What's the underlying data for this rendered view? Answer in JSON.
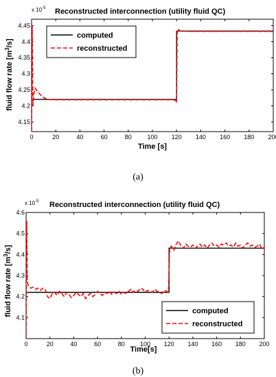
{
  "chart_data": [
    {
      "type": "line",
      "panel_caption": "(a)",
      "title": "Reconstructed interconnection (utility fluid QC)",
      "y_multiplier": "x 10",
      "y_multiplier_exponent": "-5",
      "xlabel": "Time [s]",
      "ylabel_main": "fluid flow rate [m",
      "ylabel_sup": "3",
      "ylabel_tail": "/s]",
      "xlim": [
        0,
        200
      ],
      "ylim": [
        4.12,
        4.47
      ],
      "xticks": [
        0,
        20,
        40,
        60,
        80,
        100,
        120,
        140,
        160,
        180,
        200
      ],
      "yticks": [
        4.15,
        4.2,
        4.25,
        4.3,
        4.35,
        4.4,
        4.45
      ],
      "legend_position": "top-left",
      "series": [
        {
          "name": "computed",
          "color": "#000000",
          "style": "solid",
          "x": [
            0,
            120,
            120,
            200
          ],
          "y": [
            4.22,
            4.22,
            4.433,
            4.433
          ]
        },
        {
          "name": "reconstructed",
          "color": "#ff0000",
          "style": "dashed",
          "x": [
            0,
            0.5,
            1,
            2,
            3,
            4,
            5,
            6,
            8,
            10,
            12,
            14,
            18,
            25,
            40,
            60,
            80,
            100,
            118,
            119.5,
            120,
            120.5,
            121,
            123,
            130,
            150,
            175,
            200
          ],
          "y": [
            4.12,
            4.45,
            4.2,
            4.24,
            4.255,
            4.25,
            4.245,
            4.24,
            4.232,
            4.226,
            4.222,
            4.22,
            4.219,
            4.219,
            4.219,
            4.219,
            4.219,
            4.219,
            4.219,
            4.215,
            4.21,
            4.43,
            4.44,
            4.433,
            4.432,
            4.432,
            4.432,
            4.432
          ]
        }
      ]
    },
    {
      "type": "line",
      "panel_caption": "(b)",
      "title": "Reconstructed interconnection (utility fluid QC)",
      "y_multiplier": "x 10",
      "y_multiplier_exponent": "-5",
      "xlabel": "Time[s]",
      "ylabel_main": "fluid flow rate [m",
      "ylabel_sup": "3",
      "ylabel_tail": "/s]",
      "xlim": [
        0,
        200
      ],
      "ylim": [
        4.0,
        4.6
      ],
      "xticks": [
        0,
        20,
        40,
        60,
        80,
        100,
        120,
        140,
        160,
        180,
        200
      ],
      "yticks": [
        4.1,
        4.2,
        4.3,
        4.4,
        4.5,
        4.6
      ],
      "legend_position": "bottom-right",
      "series": [
        {
          "name": "computed",
          "color": "#000000",
          "style": "solid",
          "x": [
            0,
            120,
            120,
            200
          ],
          "y": [
            4.22,
            4.22,
            4.43,
            4.43
          ]
        },
        {
          "name": "reconstructed",
          "color": "#ff0000",
          "style": "dashed",
          "x": [
            0,
            0.5,
            1,
            2,
            4,
            6,
            8,
            10,
            12,
            14,
            16,
            18,
            20,
            22,
            24,
            26,
            28,
            30,
            32,
            34,
            36,
            38,
            40,
            42,
            44,
            46,
            48,
            50,
            52,
            54,
            56,
            58,
            60,
            62,
            64,
            66,
            68,
            70,
            72,
            74,
            76,
            78,
            80,
            82,
            84,
            86,
            88,
            90,
            92,
            94,
            96,
            98,
            100,
            102,
            104,
            106,
            108,
            110,
            112,
            114,
            116,
            118,
            119.5,
            120.5,
            122,
            124,
            126,
            128,
            130,
            132,
            134,
            136,
            138,
            140,
            142,
            144,
            146,
            148,
            150,
            152,
            154,
            156,
            158,
            160,
            162,
            164,
            166,
            168,
            170,
            172,
            174,
            176,
            178,
            180,
            182,
            184,
            186,
            188,
            190,
            192,
            194,
            196,
            198,
            200
          ],
          "y": [
            4.0,
            4.56,
            4.27,
            4.25,
            4.24,
            4.245,
            4.235,
            4.24,
            4.23,
            4.24,
            4.235,
            4.2,
            4.19,
            4.215,
            4.22,
            4.205,
            4.225,
            4.215,
            4.2,
            4.22,
            4.21,
            4.195,
            4.205,
            4.22,
            4.21,
            4.2,
            4.215,
            4.19,
            4.205,
            4.215,
            4.2,
            4.21,
            4.225,
            4.215,
            4.205,
            4.22,
            4.215,
            4.225,
            4.21,
            4.22,
            4.215,
            4.225,
            4.21,
            4.22,
            4.215,
            4.225,
            4.235,
            4.22,
            4.23,
            4.225,
            4.24,
            4.235,
            4.22,
            4.23,
            4.225,
            4.22,
            4.235,
            4.225,
            4.22,
            4.215,
            4.23,
            4.225,
            4.22,
            4.43,
            4.44,
            4.42,
            4.45,
            4.465,
            4.44,
            4.43,
            4.45,
            4.44,
            4.435,
            4.445,
            4.43,
            4.44,
            4.45,
            4.435,
            4.445,
            4.43,
            4.445,
            4.455,
            4.44,
            4.445,
            4.435,
            4.45,
            4.445,
            4.455,
            4.44,
            4.445,
            4.435,
            4.455,
            4.44,
            4.445,
            4.43,
            4.445,
            4.455,
            4.44,
            4.445,
            4.435,
            4.44,
            4.45,
            4.425,
            4.435
          ]
        }
      ]
    }
  ]
}
